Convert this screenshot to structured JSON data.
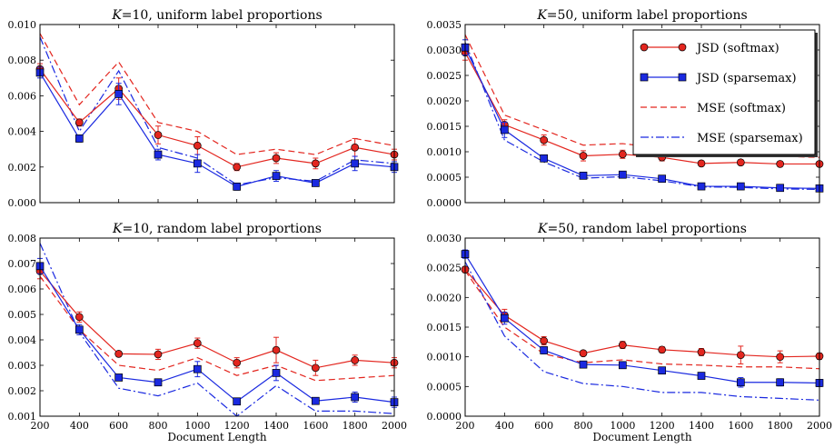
{
  "chart_data": [
    {
      "type": "line",
      "title": "K=10, uniform label proportions",
      "title_italic": "K",
      "title_rest": "=10, uniform label proportions",
      "xlabel": "",
      "ylabel": "",
      "x": [
        200,
        400,
        600,
        800,
        1000,
        1200,
        1400,
        1600,
        1800,
        2000
      ],
      "xlim": [
        200,
        2000
      ],
      "ylim": [
        0,
        0.01
      ],
      "yticks": [
        0.0,
        0.002,
        0.004,
        0.006,
        0.008,
        0.01
      ],
      "ytick_labels": [
        "0.000",
        "0.002",
        "0.004",
        "0.006",
        "0.008",
        "0.010"
      ],
      "xtick_labels": [],
      "series": [
        {
          "name": "JSD (softmax)",
          "style": "solid-circle",
          "color": "#e3261f",
          "values": [
            0.0075,
            0.0045,
            0.0064,
            0.0038,
            0.0032,
            0.002,
            0.0025,
            0.0022,
            0.0031,
            0.0027
          ],
          "err": [
            0.0003,
            0.0002,
            0.0006,
            0.0005,
            0.0005,
            0.0002,
            0.0003,
            0.0003,
            0.0005,
            0.0003
          ]
        },
        {
          "name": "JSD (sparsemax)",
          "style": "solid-square",
          "color": "#1a29e0",
          "values": [
            0.0073,
            0.0036,
            0.0061,
            0.0027,
            0.0022,
            0.0009,
            0.0015,
            0.0011,
            0.0022,
            0.002
          ],
          "err": [
            0.0003,
            0.0002,
            0.0006,
            0.0003,
            0.0005,
            0.0002,
            0.0003,
            0.0001,
            0.0004,
            0.0003
          ]
        },
        {
          "name": "MSE (softmax)",
          "style": "dashed",
          "color": "#e3261f",
          "values": [
            0.0095,
            0.0055,
            0.0079,
            0.0045,
            0.004,
            0.0027,
            0.003,
            0.0027,
            0.0036,
            0.0032
          ]
        },
        {
          "name": "MSE (sparsemax)",
          "style": "dashdot",
          "color": "#1a29e0",
          "values": [
            0.0093,
            0.004,
            0.0074,
            0.0031,
            0.0025,
            0.001,
            0.0014,
            0.0012,
            0.0024,
            0.0022
          ]
        }
      ]
    },
    {
      "type": "line",
      "title": "K=50, uniform label proportions",
      "title_italic": "K",
      "title_rest": "=50, uniform label proportions",
      "xlabel": "",
      "ylabel": "",
      "x": [
        200,
        400,
        600,
        800,
        1000,
        1200,
        1400,
        1600,
        1800,
        2000
      ],
      "xlim": [
        200,
        2000
      ],
      "ylim": [
        0,
        0.0035
      ],
      "yticks": [
        0.0,
        0.0005,
        0.001,
        0.0015,
        0.002,
        0.0025,
        0.003,
        0.0035
      ],
      "ytick_labels": [
        "0.0000",
        "0.0005",
        "0.0010",
        "0.0015",
        "0.0020",
        "0.0025",
        "0.0030",
        "0.0035"
      ],
      "xtick_labels": [],
      "legend": "top-right",
      "series": [
        {
          "name": "JSD (softmax)",
          "style": "solid-circle",
          "color": "#e3261f",
          "values": [
            0.00295,
            0.00153,
            0.00123,
            0.00092,
            0.00095,
            0.00089,
            0.00077,
            0.00079,
            0.00076,
            0.00076
          ],
          "err": [
            0.00015,
            0.0001,
            0.0001,
            0.0001,
            8e-05,
            7e-05,
            5e-05,
            5e-05,
            5e-05,
            5e-05
          ]
        },
        {
          "name": "JSD (sparsemax)",
          "style": "solid-square",
          "color": "#1a29e0",
          "values": [
            0.00305,
            0.00143,
            0.00087,
            0.00053,
            0.00055,
            0.00047,
            0.00032,
            0.00032,
            0.00029,
            0.00028
          ],
          "err": [
            0.00015,
            0.00015,
            5e-05,
            5e-05,
            5e-05,
            5e-05,
            3e-05,
            3e-05,
            3e-05,
            3e-05
          ]
        },
        {
          "name": "MSE (softmax)",
          "style": "dashed",
          "color": "#e3261f",
          "values": [
            0.0033,
            0.00172,
            0.00143,
            0.00113,
            0.00116,
            0.00107,
            0.00092,
            0.00091,
            0.00091,
            0.00089
          ]
        },
        {
          "name": "MSE (sparsemax)",
          "style": "dashdot",
          "color": "#1a29e0",
          "values": [
            0.00315,
            0.00123,
            0.0008,
            0.00048,
            0.00051,
            0.00043,
            0.00031,
            0.0003,
            0.00027,
            0.00026
          ]
        }
      ]
    },
    {
      "type": "line",
      "title": "K=10, random label proportions",
      "title_italic": "K",
      "title_rest": "=10, random label proportions",
      "xlabel": "Document Length",
      "ylabel": "",
      "x": [
        200,
        400,
        600,
        800,
        1000,
        1200,
        1400,
        1600,
        1800,
        2000
      ],
      "xlim": [
        200,
        2000
      ],
      "ylim": [
        0.001,
        0.008
      ],
      "yticks": [
        0.001,
        0.002,
        0.003,
        0.004,
        0.005,
        0.006,
        0.007,
        0.008
      ],
      "ytick_labels": [
        "0.001",
        "0.002",
        "0.003",
        "0.004",
        "0.005",
        "0.006",
        "0.007",
        "0.008"
      ],
      "xtick_labels": [
        "200",
        "400",
        "600",
        "800",
        "1000",
        "1200",
        "1400",
        "1600",
        "1800",
        "2000"
      ],
      "series": [
        {
          "name": "JSD (softmax)",
          "style": "solid-circle",
          "color": "#e3261f",
          "values": [
            0.0067,
            0.0049,
            0.00345,
            0.00343,
            0.00387,
            0.0031,
            0.0036,
            0.0029,
            0.0032,
            0.0031
          ],
          "err": [
            0.0003,
            0.0002,
            0.0001,
            0.0002,
            0.0002,
            0.0002,
            0.0005,
            0.0003,
            0.0002,
            0.0002
          ]
        },
        {
          "name": "JSD (sparsemax)",
          "style": "solid-square",
          "color": "#1a29e0",
          "values": [
            0.0069,
            0.0044,
            0.00252,
            0.00233,
            0.00285,
            0.00158,
            0.0027,
            0.0016,
            0.00175,
            0.00155
          ],
          "err": [
            0.0003,
            0.0002,
            0.0001,
            0.0001,
            0.0003,
            0.0001,
            0.0003,
            0.0001,
            0.0002,
            0.0002
          ]
        },
        {
          "name": "MSE (softmax)",
          "style": "dashed",
          "color": "#e3261f",
          "values": [
            0.0065,
            0.0044,
            0.003,
            0.0028,
            0.0033,
            0.0026,
            0.003,
            0.0024,
            0.0025,
            0.0026
          ]
        },
        {
          "name": "MSE (sparsemax)",
          "style": "dashdot",
          "color": "#1a29e0",
          "values": [
            0.0078,
            0.0043,
            0.0021,
            0.0018,
            0.0023,
            0.001,
            0.0022,
            0.0012,
            0.0012,
            0.0011
          ]
        }
      ]
    },
    {
      "type": "line",
      "title": "K=50, random label proportions",
      "title_italic": "K",
      "title_rest": "=50, random label proportions",
      "xlabel": "Document Length",
      "ylabel": "",
      "x": [
        200,
        400,
        600,
        800,
        1000,
        1200,
        1400,
        1600,
        1800,
        2000
      ],
      "xlim": [
        200,
        2000
      ],
      "ylim": [
        0,
        0.003
      ],
      "yticks": [
        0.0,
        0.0005,
        0.001,
        0.0015,
        0.002,
        0.0025,
        0.003
      ],
      "ytick_labels": [
        "0.0000",
        "0.0005",
        "0.0010",
        "0.0015",
        "0.0020",
        "0.0025",
        "0.0030"
      ],
      "xtick_labels": [
        "200",
        "400",
        "600",
        "800",
        "1000",
        "1200",
        "1400",
        "1600",
        "1800",
        "2000"
      ],
      "series": [
        {
          "name": "JSD (softmax)",
          "style": "solid-circle",
          "color": "#e3261f",
          "values": [
            0.00247,
            0.0017,
            0.00127,
            0.00106,
            0.0012,
            0.00112,
            0.00108,
            0.00103,
            0.001,
            0.00101
          ],
          "err": [
            5e-05,
            0.0001,
            7e-05,
            3e-05,
            6e-05,
            5e-05,
            6e-05,
            0.00015,
            0.0001,
            5e-05
          ]
        },
        {
          "name": "JSD (sparsemax)",
          "style": "solid-square",
          "color": "#1a29e0",
          "values": [
            0.00273,
            0.00165,
            0.00111,
            0.00087,
            0.00086,
            0.00077,
            0.00068,
            0.00057,
            0.00057,
            0.00056
          ],
          "err": [
            7e-05,
            0.0001,
            6e-05,
            3e-05,
            4e-05,
            3e-05,
            5e-05,
            8e-05,
            6e-05,
            6e-05
          ]
        },
        {
          "name": "MSE (softmax)",
          "style": "dashed",
          "color": "#e3261f",
          "values": [
            0.00245,
            0.0015,
            0.00105,
            0.0009,
            0.00095,
            0.00088,
            0.00086,
            0.00083,
            0.00083,
            0.0008
          ]
        },
        {
          "name": "MSE (sparsemax)",
          "style": "dashdot",
          "color": "#1a29e0",
          "values": [
            0.0026,
            0.00135,
            0.00075,
            0.00055,
            0.0005,
            0.0004,
            0.0004,
            0.00033,
            0.0003,
            0.00027
          ]
        }
      ]
    }
  ],
  "colors": {
    "red": "#e3261f",
    "blue": "#1a29e0"
  }
}
